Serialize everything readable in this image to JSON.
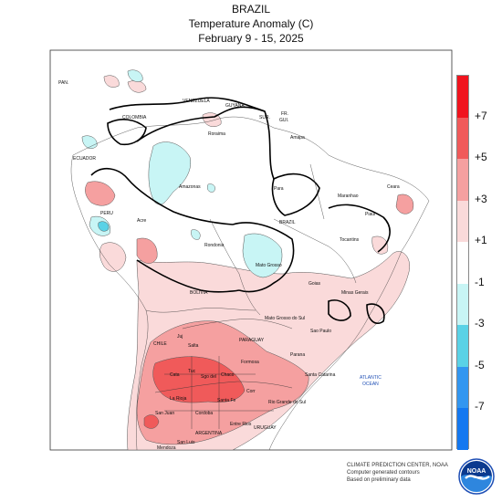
{
  "title": {
    "line1": "BRAZIL",
    "line2": "Temperature Anomaly (C)",
    "line3": "February 9 - 15, 2025"
  },
  "legend": {
    "labels": [
      "+7",
      "+5",
      "+3",
      "+1",
      "-1",
      "-3",
      "-5",
      "-7"
    ],
    "colors": [
      "#f0141e",
      "#f05a5a",
      "#f5a0a0",
      "#fadada",
      "#ffffff",
      "#c8f5f5",
      "#5ad2e6",
      "#3296f0",
      "#1478f0"
    ]
  },
  "map_labels": {
    "pan": "PAN.",
    "venezuela": "VENEZUELA",
    "guyana": "GUYANA",
    "sur": "SUR.",
    "fr_gui": "FR.",
    "gui": "GUI.",
    "colombia": "COLOMBIA",
    "ecuador": "ECUADOR",
    "peru": "PERU",
    "bolivia": "BOLIVIA",
    "chile": "CHILE",
    "paraguay": "PARAGUAY",
    "argentina": "ARGENTINA",
    "uruguay": "URUGUAY",
    "brazil": "BRAZIL",
    "atlantic": "ATLANTIC",
    "ocean": "OCEAN",
    "amapa": "Amapa",
    "roraima": "Roraima",
    "amazonas": "Amazonas",
    "para": "Para",
    "maranhao": "Maranhao",
    "ceara": "Ceara",
    "piaui": "Piaui",
    "acre": "Acre",
    "rondonia": "Rondonia",
    "tocantins": "Tocantins",
    "mato_grosso": "Mato Grosso",
    "goias": "Goias",
    "minas_gerais": "Minas Gerais",
    "mato_grosso_do_sul": "Mato Grosso do Sul",
    "sao_paulo": "Sao Paulo",
    "parana": "Parana",
    "santa_catarina": "Santa Catarina",
    "rio_grande_do_sul": "Rio Grande do Sul",
    "formosa": "Formosa",
    "chaco": "Chaco",
    "corr": "Corr",
    "salta": "Salta",
    "jujuy": "Juj",
    "santa_fe": "Santa Fe",
    "cordoba": "Cordoba",
    "entre_rios": "Entre Rios",
    "la_rioja": "La Rioja",
    "san_juan": "San Juan",
    "san_luis": "San Luis",
    "mendoza": "Mendoza",
    "cata": "Cata",
    "tuc": "Tuc",
    "sgo_del": "Sgo del"
  },
  "credit": {
    "line1": "CLIMATE PREDICTION CENTER, NOAA",
    "line2": "Computer generated contours",
    "line3": "Based on preliminary data"
  },
  "logo_text": "NOAA"
}
